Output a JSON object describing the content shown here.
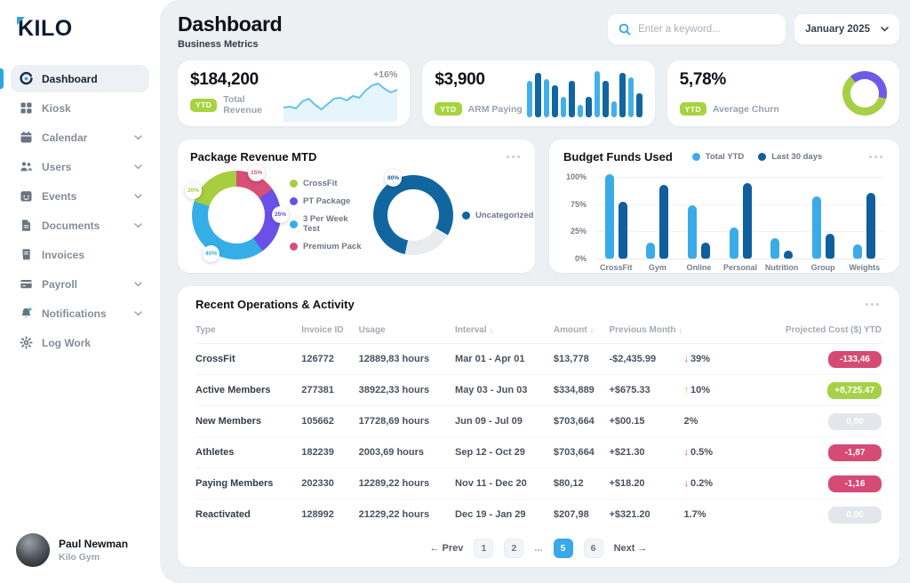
{
  "brand": {
    "logo": "KILO"
  },
  "sidebar": {
    "items": [
      {
        "label": "Dashboard",
        "icon": "dashboard",
        "active": true,
        "chevron": false
      },
      {
        "label": "Kiosk",
        "icon": "kiosk",
        "active": false,
        "chevron": false
      },
      {
        "label": "Calendar",
        "icon": "calendar",
        "active": false,
        "chevron": true
      },
      {
        "label": "Users",
        "icon": "users",
        "active": false,
        "chevron": true
      },
      {
        "label": "Events",
        "icon": "events",
        "active": false,
        "chevron": true
      },
      {
        "label": "Documents",
        "icon": "documents",
        "active": false,
        "chevron": true
      },
      {
        "label": "Invoices",
        "icon": "invoices",
        "active": false,
        "chevron": false
      },
      {
        "label": "Payroll",
        "icon": "payroll",
        "active": false,
        "chevron": true
      },
      {
        "label": "Notifications",
        "icon": "notifications",
        "active": false,
        "chevron": true
      },
      {
        "label": "Log Work",
        "icon": "logwork",
        "active": false,
        "chevron": false
      }
    ],
    "profile": {
      "name": "Paul Newman",
      "org": "Kilo Gym"
    }
  },
  "header": {
    "title": "Dashboard",
    "subtitle": "Business Metrics",
    "search_placeholder": "Enter a keyword...",
    "period": "January 2025"
  },
  "kpis": [
    {
      "value": "$184,200",
      "change": "+16%",
      "badge": "YTD",
      "label": "Total Revenue"
    },
    {
      "value": "$3,900",
      "badge": "YTD",
      "label": "ARM Paying"
    },
    {
      "value": "5,78%",
      "badge": "YTD",
      "label": "Average Churn"
    }
  ],
  "chart_data": [
    {
      "type": "line",
      "name": "total-revenue-sparkline",
      "color": "#63c3ea",
      "fill": "rgba(99,195,234,0.16)",
      "values": [
        10,
        11,
        9,
        17,
        20,
        13,
        8,
        14,
        20,
        21,
        18,
        23,
        21,
        29,
        35,
        37,
        31,
        27,
        30
      ]
    },
    {
      "type": "bar",
      "name": "arm-paying-bars",
      "palette": [
        "#41b0e8",
        "#11669f"
      ],
      "values": [
        45,
        55,
        48,
        40,
        25,
        45,
        15,
        25,
        58,
        45,
        20,
        55,
        50,
        30
      ]
    },
    {
      "type": "pie",
      "name": "average-churn-donut",
      "start_angle": -40,
      "slices": [
        {
          "label": "Churn",
          "value": 40,
          "color": "#6e5ae8"
        },
        {
          "label": "Retained",
          "value": 60,
          "color": "#a7d046"
        }
      ]
    },
    {
      "type": "pie",
      "name": "package-revenue-donut",
      "title": "Package Revenue MTD",
      "start_angle": 0,
      "slices": [
        {
          "label": "Premium Pack",
          "value": 15,
          "color": "#d84f78"
        },
        {
          "label": "PT Package",
          "value": 25,
          "color": "#6a50e8"
        },
        {
          "label": "3 Per Week Test",
          "value": 40,
          "color": "#35aee8"
        },
        {
          "label": "CrossFit",
          "value": 20,
          "color": "#a6ce3e"
        }
      ],
      "legend": [
        {
          "label": "CrossFit",
          "color": "#a6ce3e"
        },
        {
          "label": "PT Package",
          "color": "#6a50e8"
        },
        {
          "label": "3 Per Week Test",
          "color": "#35aee8"
        },
        {
          "label": "Premium Pack",
          "color": "#d84f78"
        }
      ]
    },
    {
      "type": "pie",
      "name": "uncategorized-donut",
      "start_angle": 192,
      "slices": [
        {
          "label": "Uncategorized",
          "value": 80,
          "color": "#11669f"
        },
        {
          "label": "Other",
          "value": 20,
          "color": "#e9ecef"
        }
      ],
      "legend": [
        {
          "label": "Uncategorized",
          "color": "#11669f"
        }
      ]
    },
    {
      "type": "bar",
      "name": "budget-funds-used",
      "title": "Budget Funds Used",
      "categories": [
        "CrossFit",
        "Gym",
        "Online",
        "Personal",
        "Nutrition",
        "Group",
        "Weights"
      ],
      "series": [
        {
          "name": "Total YTD",
          "color": "#3aabe8",
          "values": [
            103,
            20,
            65,
            38,
            25,
            76,
            17
          ]
        },
        {
          "name": "Last 30 days",
          "color": "#0f5f9e",
          "values": [
            70,
            90,
            20,
            92,
            10,
            30,
            80
          ]
        }
      ],
      "yticks": [
        "100%",
        "75%",
        "25%",
        "0%"
      ]
    }
  ],
  "table": {
    "title": "Recent Operations & Activity",
    "headers": [
      {
        "label": "Type"
      },
      {
        "label": "Invoice ID"
      },
      {
        "label": "Usage"
      },
      {
        "label": "Interval",
        "sort": "down"
      },
      {
        "label": "Amount",
        "sort": "down"
      },
      {
        "label": "Previous Month",
        "sort": "down"
      },
      {
        "label": "Projected Cost ($) YTD",
        "align": "right"
      }
    ],
    "rows": [
      {
        "type": "CrossFit",
        "invoice_id": "126772",
        "usage": "12889,83 hours",
        "interval": "Mar 01 - Apr 01",
        "amount": "$13,778",
        "previous": "-$2,435.99",
        "change": "39%",
        "change_dir": "down",
        "projected": "-133,46",
        "projected_style": "red"
      },
      {
        "type": "Active Members",
        "invoice_id": "277381",
        "usage": "38922,33 hours",
        "interval": "May 03 - Jun 03",
        "amount": "$334,889",
        "previous": "+$675.33",
        "change": "10%",
        "change_dir": "up",
        "projected": "+8,725.47",
        "projected_style": "green"
      },
      {
        "type": "New Members",
        "invoice_id": "105662",
        "usage": "17728,69 hours",
        "interval": "Jun 09 - Jul 09",
        "amount": "$703,664",
        "previous": "+$00.15",
        "change": "2%",
        "change_dir": "none",
        "projected": "0,00",
        "projected_style": "gray"
      },
      {
        "type": "Athletes",
        "invoice_id": "182239",
        "usage": "2003,69 hours",
        "interval": "Sep 12 - Oct 29",
        "amount": "$703,664",
        "previous": "+$21.30",
        "change": "0.5%",
        "change_dir": "down",
        "projected": "-1,87",
        "projected_style": "red"
      },
      {
        "type": "Paying Members",
        "invoice_id": "202330",
        "usage": "12289,22 hours",
        "interval": "Nov 11 - Dec 20",
        "amount": "$80,12",
        "previous": "+$18.20",
        "change": "0.2%",
        "change_dir": "down",
        "projected": "-1,16",
        "projected_style": "red"
      },
      {
        "type": "Reactivated",
        "invoice_id": "128992",
        "usage": "21229,22 hours",
        "interval": "Dec 19 - Jan 29",
        "amount": "$207,98",
        "previous": "+$321.20",
        "change": "1.7%",
        "change_dir": "none",
        "projected": "0,00",
        "projected_style": "gray"
      }
    ],
    "pagination": {
      "prev": "← Prev",
      "next": "Next →",
      "pages": [
        "1",
        "2",
        "...",
        "5",
        "6"
      ],
      "active": "5"
    }
  }
}
